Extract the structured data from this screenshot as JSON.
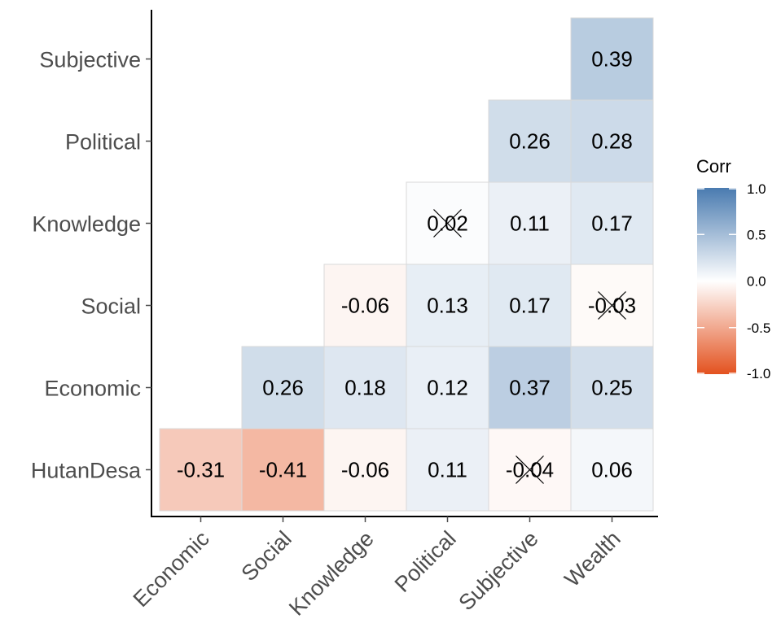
{
  "chart_data": {
    "type": "heatmap",
    "title": "",
    "xlabel": "",
    "ylabel": "",
    "x_categories": [
      "Economic",
      "Social",
      "Knowledge",
      "Political",
      "Subjective",
      "Wealth"
    ],
    "y_categories": [
      "HutanDesa",
      "Economic",
      "Social",
      "Knowledge",
      "Political",
      "Subjective"
    ],
    "cells": [
      {
        "x": "Economic",
        "y": "HutanDesa",
        "value": -0.31,
        "label": "-0.31",
        "insignificant": false
      },
      {
        "x": "Social",
        "y": "HutanDesa",
        "value": -0.41,
        "label": "-0.41",
        "insignificant": false
      },
      {
        "x": "Knowledge",
        "y": "HutanDesa",
        "value": -0.06,
        "label": "-0.06",
        "insignificant": false
      },
      {
        "x": "Political",
        "y": "HutanDesa",
        "value": 0.11,
        "label": "0.11",
        "insignificant": false
      },
      {
        "x": "Subjective",
        "y": "HutanDesa",
        "value": -0.04,
        "label": "-0.04",
        "insignificant": true
      },
      {
        "x": "Wealth",
        "y": "HutanDesa",
        "value": 0.06,
        "label": "0.06",
        "insignificant": false
      },
      {
        "x": "Social",
        "y": "Economic",
        "value": 0.26,
        "label": "0.26",
        "insignificant": false
      },
      {
        "x": "Knowledge",
        "y": "Economic",
        "value": 0.18,
        "label": "0.18",
        "insignificant": false
      },
      {
        "x": "Political",
        "y": "Economic",
        "value": 0.12,
        "label": "0.12",
        "insignificant": false
      },
      {
        "x": "Subjective",
        "y": "Economic",
        "value": 0.37,
        "label": "0.37",
        "insignificant": false
      },
      {
        "x": "Wealth",
        "y": "Economic",
        "value": 0.25,
        "label": "0.25",
        "insignificant": false
      },
      {
        "x": "Knowledge",
        "y": "Social",
        "value": -0.06,
        "label": "-0.06",
        "insignificant": false
      },
      {
        "x": "Political",
        "y": "Social",
        "value": 0.13,
        "label": "0.13",
        "insignificant": false
      },
      {
        "x": "Subjective",
        "y": "Social",
        "value": 0.17,
        "label": "0.17",
        "insignificant": false
      },
      {
        "x": "Wealth",
        "y": "Social",
        "value": -0.03,
        "label": "-0.03",
        "insignificant": true
      },
      {
        "x": "Political",
        "y": "Knowledge",
        "value": 0.02,
        "label": "0.02",
        "insignificant": true
      },
      {
        "x": "Subjective",
        "y": "Knowledge",
        "value": 0.11,
        "label": "0.11",
        "insignificant": false
      },
      {
        "x": "Wealth",
        "y": "Knowledge",
        "value": 0.17,
        "label": "0.17",
        "insignificant": false
      },
      {
        "x": "Subjective",
        "y": "Political",
        "value": 0.26,
        "label": "0.26",
        "insignificant": false
      },
      {
        "x": "Wealth",
        "y": "Political",
        "value": 0.28,
        "label": "0.28",
        "insignificant": false
      },
      {
        "x": "Wealth",
        "y": "Subjective",
        "value": 0.39,
        "label": "0.39",
        "insignificant": false
      }
    ],
    "legend": {
      "title": "Corr",
      "placement": "right",
      "ticks": [
        1.0,
        0.5,
        0.0,
        -0.5,
        -1.0
      ],
      "tick_labels": [
        "1.0",
        "0.5",
        "0.0",
        "-0.5",
        "-1.0"
      ]
    },
    "colors": {
      "high": "#4a7bb0",
      "mid": "#ffffff",
      "low": "#e3521f",
      "cell_border": "#d9d9d9",
      "axis": "#000000",
      "tick_text": "#4d4d4d"
    },
    "grid": false
  }
}
